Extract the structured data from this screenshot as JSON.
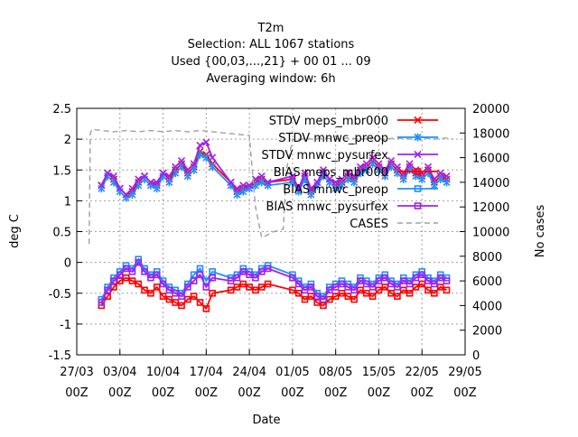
{
  "chart_data": {
    "type": "line",
    "title": [
      "T2m",
      "Selection: ALL   1067 stations",
      "Used {00,03,...,21} + 00 01 ... 09",
      "Averaging window:  6h"
    ],
    "xlabel": "Date",
    "ylabel": "deg C",
    "y2label": "No cases",
    "ylim": [
      -1.5,
      2.5
    ],
    "y2lim": [
      0,
      20000
    ],
    "y_ticks": [
      "-1.5",
      "-1",
      "-0.5",
      "0",
      "0.5",
      "1",
      "1.5",
      "2",
      "2.5"
    ],
    "y2_ticks": [
      "0",
      "2000",
      "4000",
      "6000",
      "8000",
      "10000",
      "12000",
      "14000",
      "16000",
      "18000",
      "20000"
    ],
    "x_ticks": [
      {
        "day": "27/03",
        "hour": "00Z"
      },
      {
        "day": "03/04",
        "hour": "00Z"
      },
      {
        "day": "10/04",
        "hour": "00Z"
      },
      {
        "day": "17/04",
        "hour": "00Z"
      },
      {
        "day": "24/04",
        "hour": "00Z"
      },
      {
        "day": "01/05",
        "hour": "00Z"
      },
      {
        "day": "08/05",
        "hour": "00Z"
      },
      {
        "day": "15/05",
        "hour": "00Z"
      },
      {
        "day": "22/05",
        "hour": "00Z"
      },
      {
        "day": "29/05",
        "hour": "00Z"
      }
    ],
    "xlim_days": [
      0,
      63
    ],
    "grid": true,
    "legend_position": "top-right",
    "series": [
      {
        "name": "STDV meps_mbr000",
        "color": "#ff0000",
        "marker": "x",
        "days": [
          4,
          5,
          6,
          7,
          8,
          9,
          10,
          11,
          12,
          13,
          14,
          15,
          16,
          17,
          18,
          19,
          20,
          21,
          22,
          25,
          26,
          27,
          28,
          29,
          30,
          31,
          35,
          36,
          37,
          38,
          39,
          40,
          41,
          42,
          43,
          44,
          45,
          46,
          47,
          48,
          49,
          50,
          51,
          52,
          53,
          54,
          55,
          56,
          57,
          58,
          59,
          60
        ],
        "values": [
          1.25,
          1.45,
          1.35,
          1.2,
          1.1,
          1.15,
          1.3,
          1.4,
          1.3,
          1.25,
          1.45,
          1.35,
          1.5,
          1.6,
          1.45,
          1.55,
          1.8,
          1.75,
          1.6,
          1.3,
          1.15,
          1.2,
          1.25,
          1.3,
          1.35,
          1.3,
          1.35,
          1.2,
          1.4,
          1.15,
          1.3,
          1.45,
          1.35,
          1.25,
          1.3,
          1.4,
          1.35,
          1.5,
          1.55,
          1.65,
          1.55,
          1.45,
          1.6,
          1.5,
          1.4,
          1.55,
          1.45,
          1.4,
          1.5,
          1.3,
          1.4,
          1.35
        ]
      },
      {
        "name": "STDV mnwc_preop",
        "color": "#1e90ff",
        "marker": "*",
        "days": [
          4,
          5,
          6,
          7,
          8,
          9,
          10,
          11,
          12,
          13,
          14,
          15,
          16,
          17,
          18,
          19,
          20,
          21,
          22,
          25,
          26,
          27,
          28,
          29,
          30,
          31,
          35,
          36,
          37,
          38,
          39,
          40,
          41,
          42,
          43,
          44,
          45,
          46,
          47,
          48,
          49,
          50,
          51,
          52,
          53,
          54,
          55,
          56,
          57,
          58,
          59,
          60
        ],
        "values": [
          1.2,
          1.4,
          1.3,
          1.15,
          1.05,
          1.1,
          1.25,
          1.35,
          1.25,
          1.2,
          1.4,
          1.3,
          1.45,
          1.55,
          1.4,
          1.5,
          1.75,
          1.7,
          1.55,
          1.25,
          1.1,
          1.15,
          1.2,
          1.25,
          1.3,
          1.25,
          1.3,
          1.15,
          1.35,
          1.1,
          1.25,
          1.4,
          1.3,
          1.2,
          1.25,
          1.35,
          1.3,
          1.45,
          1.5,
          1.6,
          1.5,
          1.4,
          1.55,
          1.45,
          1.35,
          1.5,
          1.4,
          1.35,
          1.45,
          1.25,
          1.35,
          1.3
        ]
      },
      {
        "name": "STDV mnwc_pysurfex",
        "color": "#a020f0",
        "marker": "x",
        "days": [
          4,
          5,
          6,
          7,
          8,
          9,
          10,
          11,
          12,
          13,
          14,
          15,
          16,
          17,
          18,
          19,
          20,
          21,
          22,
          25,
          26,
          27,
          28,
          29,
          30,
          31,
          35,
          36,
          37,
          38,
          39,
          40,
          41,
          42,
          43,
          44,
          45,
          46,
          47,
          48,
          49,
          50,
          51,
          52,
          53,
          54,
          55,
          56,
          57,
          58,
          59,
          60
        ],
        "values": [
          1.25,
          1.45,
          1.4,
          1.2,
          1.1,
          1.2,
          1.35,
          1.4,
          1.3,
          1.3,
          1.45,
          1.4,
          1.55,
          1.65,
          1.5,
          1.6,
          1.9,
          1.95,
          1.7,
          1.3,
          1.2,
          1.25,
          1.25,
          1.35,
          1.4,
          1.3,
          1.4,
          1.2,
          1.45,
          1.2,
          1.3,
          1.5,
          1.35,
          1.3,
          1.35,
          1.45,
          1.4,
          1.55,
          1.6,
          1.7,
          1.6,
          1.5,
          1.65,
          1.55,
          1.45,
          1.6,
          1.5,
          1.45,
          1.55,
          1.35,
          1.45,
          1.4
        ]
      },
      {
        "name": "BIAS meps_mbr000",
        "color": "#ff0000",
        "marker": "square",
        "days": [
          4,
          5,
          6,
          7,
          8,
          9,
          10,
          11,
          12,
          13,
          14,
          15,
          16,
          17,
          18,
          19,
          20,
          21,
          22,
          25,
          26,
          27,
          28,
          29,
          30,
          31,
          35,
          36,
          37,
          38,
          39,
          40,
          41,
          42,
          43,
          44,
          45,
          46,
          47,
          48,
          49,
          50,
          51,
          52,
          53,
          54,
          55,
          56,
          57,
          58,
          59,
          60
        ],
        "values": [
          -0.7,
          -0.55,
          -0.4,
          -0.3,
          -0.25,
          -0.3,
          -0.35,
          -0.45,
          -0.5,
          -0.4,
          -0.55,
          -0.6,
          -0.65,
          -0.7,
          -0.6,
          -0.55,
          -0.65,
          -0.75,
          -0.5,
          -0.45,
          -0.4,
          -0.35,
          -0.4,
          -0.45,
          -0.4,
          -0.35,
          -0.45,
          -0.5,
          -0.6,
          -0.55,
          -0.65,
          -0.7,
          -0.6,
          -0.55,
          -0.5,
          -0.55,
          -0.6,
          -0.45,
          -0.5,
          -0.55,
          -0.45,
          -0.4,
          -0.5,
          -0.55,
          -0.45,
          -0.5,
          -0.4,
          -0.35,
          -0.45,
          -0.5,
          -0.4,
          -0.45
        ]
      },
      {
        "name": "BIAS mnwc_preop",
        "color": "#1e90ff",
        "marker": "square",
        "days": [
          4,
          5,
          6,
          7,
          8,
          9,
          10,
          11,
          12,
          13,
          14,
          15,
          16,
          17,
          18,
          19,
          20,
          21,
          22,
          25,
          26,
          27,
          28,
          29,
          30,
          31,
          35,
          36,
          37,
          38,
          39,
          40,
          41,
          42,
          43,
          44,
          45,
          46,
          47,
          48,
          49,
          50,
          51,
          52,
          53,
          54,
          55,
          56,
          57,
          58,
          59,
          60
        ],
        "values": [
          -0.6,
          -0.4,
          -0.25,
          -0.15,
          -0.05,
          -0.1,
          0.05,
          -0.1,
          -0.2,
          -0.15,
          -0.3,
          -0.4,
          -0.45,
          -0.5,
          -0.35,
          -0.2,
          -0.1,
          -0.3,
          -0.15,
          -0.25,
          -0.2,
          -0.1,
          -0.15,
          -0.2,
          -0.1,
          -0.05,
          -0.2,
          -0.3,
          -0.4,
          -0.35,
          -0.5,
          -0.55,
          -0.4,
          -0.35,
          -0.3,
          -0.35,
          -0.4,
          -0.25,
          -0.3,
          -0.35,
          -0.25,
          -0.2,
          -0.3,
          -0.35,
          -0.25,
          -0.3,
          -0.2,
          -0.15,
          -0.25,
          -0.3,
          -0.2,
          -0.25
        ]
      },
      {
        "name": "BIAS mnwc_pysurfex",
        "color": "#a020f0",
        "marker": "square",
        "days": [
          4,
          5,
          6,
          7,
          8,
          9,
          10,
          11,
          12,
          13,
          14,
          15,
          16,
          17,
          18,
          19,
          20,
          21,
          22,
          25,
          26,
          27,
          28,
          29,
          30,
          31,
          35,
          36,
          37,
          38,
          39,
          40,
          41,
          42,
          43,
          44,
          45,
          46,
          47,
          48,
          49,
          50,
          51,
          52,
          53,
          54,
          55,
          56,
          57,
          58,
          59,
          60
        ],
        "values": [
          -0.65,
          -0.45,
          -0.3,
          -0.2,
          -0.1,
          -0.15,
          0.0,
          -0.15,
          -0.25,
          -0.2,
          -0.35,
          -0.45,
          -0.5,
          -0.55,
          -0.4,
          -0.3,
          -0.2,
          -0.4,
          -0.25,
          -0.3,
          -0.25,
          -0.15,
          -0.2,
          -0.25,
          -0.15,
          -0.1,
          -0.25,
          -0.35,
          -0.45,
          -0.4,
          -0.55,
          -0.6,
          -0.45,
          -0.4,
          -0.35,
          -0.4,
          -0.45,
          -0.3,
          -0.35,
          -0.4,
          -0.3,
          -0.25,
          -0.35,
          -0.4,
          -0.3,
          -0.35,
          -0.25,
          -0.2,
          -0.3,
          -0.35,
          -0.25,
          -0.3
        ]
      },
      {
        "name": "CASES",
        "color": "#a0a0a0",
        "marker": "none",
        "axis": "y2",
        "dashed": true,
        "days": [
          2,
          2.2,
          2.5,
          4,
          6,
          8,
          10,
          12,
          14,
          16,
          18,
          20,
          22,
          24,
          26,
          28,
          29,
          30,
          32,
          33.5,
          34,
          35,
          36,
          37,
          38,
          40,
          42,
          44,
          46,
          48,
          50,
          52,
          54,
          56,
          58,
          60,
          61
        ],
        "values": [
          9000,
          18000,
          18300,
          18200,
          18100,
          18200,
          18100,
          18200,
          18100,
          18200,
          18100,
          18200,
          18100,
          18000,
          17900,
          17800,
          12000,
          9500,
          10000,
          10200,
          15000,
          17500,
          17400,
          17600,
          17500,
          17600,
          17500,
          17600,
          17500,
          17600,
          17500,
          17600,
          17500,
          17600,
          17500,
          17600,
          17500
        ]
      }
    ]
  }
}
